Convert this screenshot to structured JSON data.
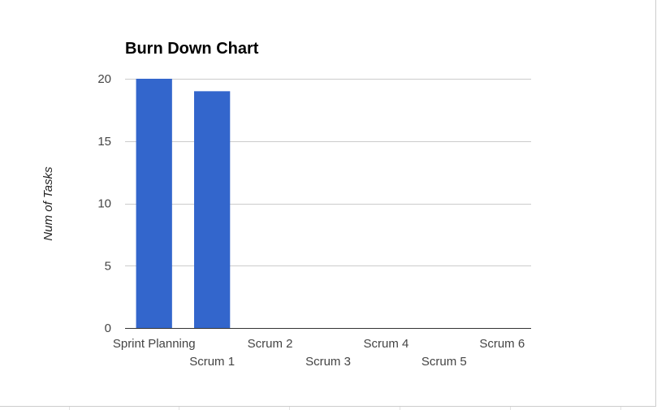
{
  "chart_data": {
    "type": "bar",
    "title": "Burn Down Chart",
    "xlabel": "",
    "ylabel": "Num of Tasks",
    "categories": [
      "Sprint Planning",
      "Scrum 1",
      "Scrum 2",
      "Scrum 3",
      "Scrum 4",
      "Scrum 5",
      "Scrum 6"
    ],
    "values": [
      20,
      19,
      0,
      0,
      0,
      0,
      0
    ],
    "ylim": [
      0,
      20
    ],
    "yticks": [
      0,
      5,
      10,
      15,
      20
    ],
    "grid": true,
    "legend": "none",
    "colors": {
      "bar": "#3366cc",
      "gridline": "#cccccc",
      "baseline": "#333333"
    }
  }
}
